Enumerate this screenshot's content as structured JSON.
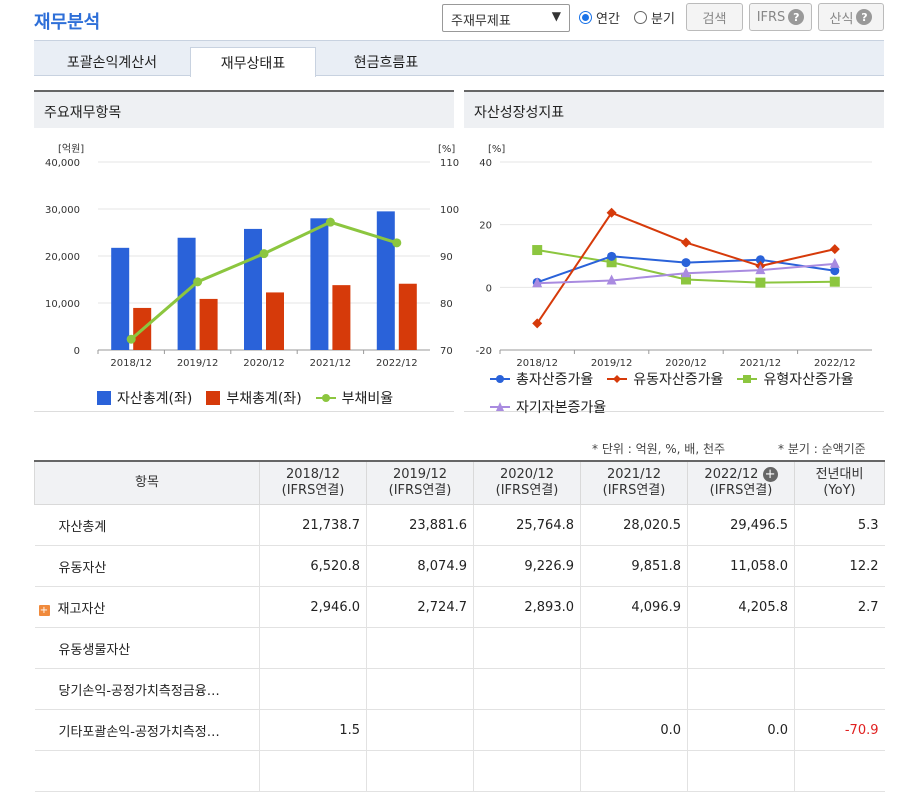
{
  "title": "재무분석",
  "controls": {
    "select_value": "주재무제표",
    "radio_annual": "연간",
    "radio_quarter": "분기",
    "search_btn": "검색",
    "ifrs_btn": "IFRS",
    "formula_btn": "산식"
  },
  "tabs": [
    "포괄손익계산서",
    "재무상태표",
    "현금흐름표"
  ],
  "left_panel": {
    "title": "주요재무항목",
    "unit_left": "[억원]",
    "unit_right": "[%]",
    "legend": [
      "자산총계(좌)",
      "부채총계(좌)",
      "부채비율"
    ]
  },
  "right_panel": {
    "title": "자산성장성지표",
    "unit": "[%]",
    "legend": [
      "총자산증가율",
      "유동자산증가율",
      "유형자산증가율",
      "자기자본증가율"
    ]
  },
  "chart_data": [
    {
      "type": "bar",
      "categories": [
        "2018/12",
        "2019/12",
        "2020/12",
        "2021/12",
        "2022/12"
      ],
      "series": [
        {
          "name": "자산총계(좌)",
          "type": "bar",
          "axis": "left",
          "color": "#2a62d9",
          "values": [
            21738.7,
            23881.6,
            25764.8,
            28020.5,
            29496.5
          ]
        },
        {
          "name": "부채총계(좌)",
          "type": "bar",
          "axis": "left",
          "color": "#d63a0a",
          "values": [
            8950,
            10870,
            12250,
            13800,
            14100
          ]
        },
        {
          "name": "부채비율",
          "type": "line",
          "axis": "right",
          "color": "#8cc63f",
          "values": [
            72.3,
            84.5,
            90.5,
            97.2,
            92.8
          ]
        }
      ],
      "ylim_left": [
        0,
        40000
      ],
      "yticks_left": [
        "0",
        "10,000",
        "20,000",
        "30,000",
        "40,000"
      ],
      "ylim_right": [
        70,
        110
      ],
      "yticks_right": [
        "70",
        "80",
        "90",
        "100",
        "110"
      ],
      "grid": true,
      "legend": "bottom"
    },
    {
      "type": "line",
      "categories": [
        "2018/12",
        "2019/12",
        "2020/12",
        "2021/12",
        "2022/12"
      ],
      "series": [
        {
          "name": "총자산증가율",
          "color": "#2a62d9",
          "marker": "circle",
          "values": [
            1.6,
            9.9,
            7.9,
            8.8,
            5.3
          ]
        },
        {
          "name": "유동자산증가율",
          "color": "#d63a0a",
          "marker": "diamond",
          "values": [
            -11.5,
            23.8,
            14.3,
            6.8,
            12.2
          ]
        },
        {
          "name": "유형자산증가율",
          "color": "#8cc63f",
          "marker": "square",
          "values": [
            11.9,
            8.0,
            2.5,
            1.5,
            1.8
          ]
        },
        {
          "name": "자기자본증가율",
          "color": "#a98be0",
          "marker": "triangle",
          "values": [
            1.3,
            2.2,
            4.5,
            5.5,
            7.5
          ]
        }
      ],
      "ylim": [
        -20,
        40
      ],
      "yticks": [
        "-20",
        "0",
        "20",
        "40"
      ],
      "grid": true,
      "legend": "bottom"
    }
  ],
  "notes": {
    "unit": "* 단위 : 억원, %, 배, 천주",
    "quarter": "* 분기 : 순액기준"
  },
  "table": {
    "item_header": "항목",
    "columns": [
      {
        "year": "2018/12",
        "type": "(IFRS연결)"
      },
      {
        "year": "2019/12",
        "type": "(IFRS연결)"
      },
      {
        "year": "2020/12",
        "type": "(IFRS연결)"
      },
      {
        "year": "2021/12",
        "type": "(IFRS연결)"
      },
      {
        "year": "2022/12",
        "type": "(IFRS연결)"
      }
    ],
    "yoy_header": "전년대비",
    "yoy_sub": "(YoY)",
    "rows": [
      {
        "label": "자산총계",
        "values": [
          "21,738.7",
          "23,881.6",
          "25,764.8",
          "28,020.5",
          "29,496.5"
        ],
        "yoy": "5.3"
      },
      {
        "label": "유동자산",
        "values": [
          "6,520.8",
          "8,074.9",
          "9,226.9",
          "9,851.8",
          "11,058.0"
        ],
        "yoy": "12.2"
      },
      {
        "label": "재고자산",
        "values": [
          "2,946.0",
          "2,724.7",
          "2,893.0",
          "4,096.9",
          "4,205.8"
        ],
        "yoy": "2.7",
        "expandable": true
      },
      {
        "label": "유동생물자산",
        "values": [
          "",
          "",
          "",
          "",
          ""
        ],
        "yoy": ""
      },
      {
        "label": "당기손익-공정가치측정금융…",
        "values": [
          "",
          "",
          "",
          "",
          ""
        ],
        "yoy": ""
      },
      {
        "label": "기타포괄손익-공정가치측정…",
        "values": [
          "1.5",
          "",
          "",
          "0.0",
          "0.0"
        ],
        "yoy": "-70.9",
        "yoy_negative": true
      },
      {
        "label": "",
        "values": [
          "",
          "",
          "",
          "",
          ""
        ],
        "yoy": ""
      }
    ]
  }
}
